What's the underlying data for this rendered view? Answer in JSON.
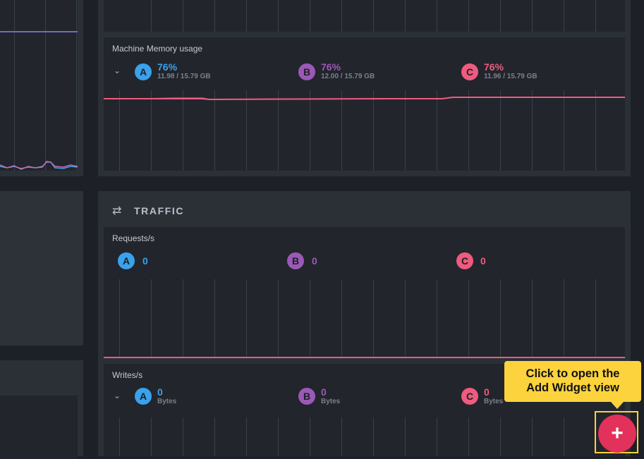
{
  "memory": {
    "title": "Machine Memory usage",
    "a": {
      "badge": "A",
      "value": "76%",
      "sub": "11.98 / 15.79 GB"
    },
    "b": {
      "badge": "B",
      "value": "76%",
      "sub": "12.00 / 15.79 GB"
    },
    "c": {
      "badge": "C",
      "value": "76%",
      "sub": "11.96 / 15.79 GB"
    }
  },
  "traffic": {
    "title": "TRAFFIC",
    "icon": "arrows-exchange-icon",
    "requests": {
      "title": "Requests/s",
      "a": {
        "badge": "A",
        "value": "0"
      },
      "b": {
        "badge": "B",
        "value": "0"
      },
      "c": {
        "badge": "C",
        "value": "0"
      }
    },
    "writes": {
      "title": "Writes/s",
      "a": {
        "badge": "A",
        "value": "0",
        "sub": "Bytes"
      },
      "b": {
        "badge": "B",
        "value": "0",
        "sub": "Bytes"
      },
      "c": {
        "badge": "C",
        "value": "0",
        "sub": "Bytes"
      }
    }
  },
  "tooltip": {
    "text_line1": "Click to open the",
    "text_line2": "Add Widget view"
  },
  "fab": {
    "label": "+",
    "icon": "plus-icon"
  },
  "colors": {
    "a": "#3aa1ec",
    "b": "#9b59b6",
    "c": "#ee5b7e",
    "accent": "#e2315a",
    "tooltip": "#fcd33d"
  }
}
